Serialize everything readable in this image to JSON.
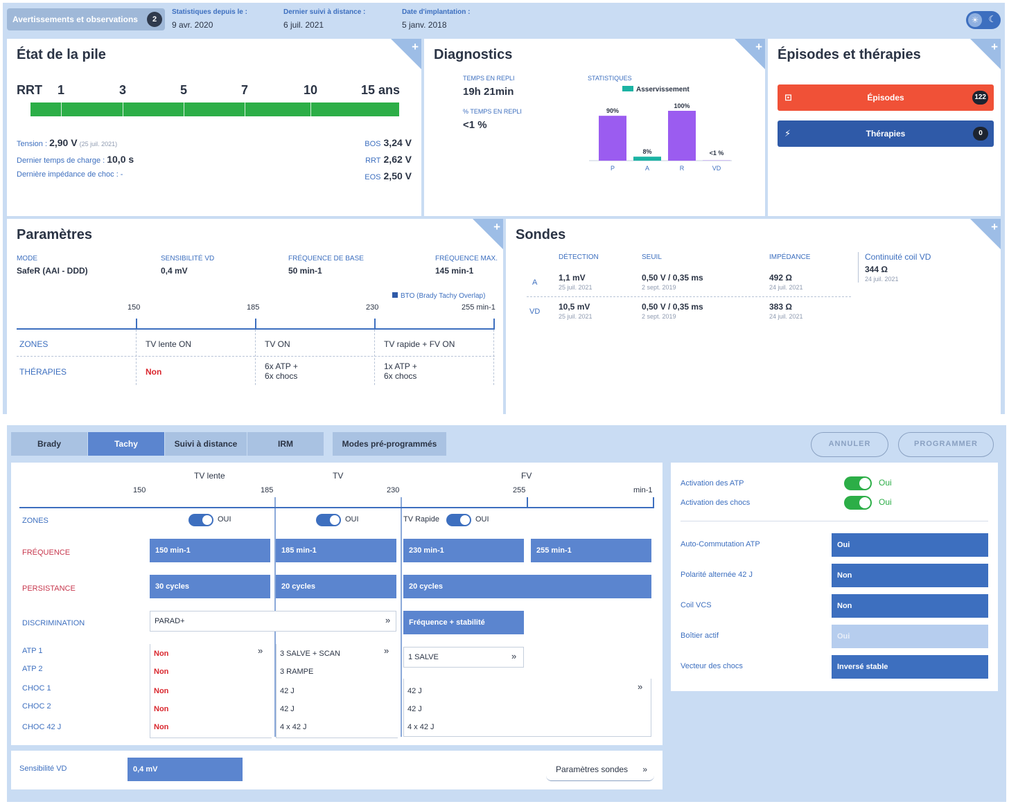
{
  "header": {
    "warnings_label": "Avertissements et observations",
    "warnings_count": "2",
    "stats_since_label": "Statistiques depuis le :",
    "stats_since_value": "9 avr. 2020",
    "last_remote_label": "Dernier suivi à distance :",
    "last_remote_value": "6 juil. 2021",
    "implant_label": "Date d'implantation :",
    "implant_value": "5 janv. 2018"
  },
  "battery": {
    "title": "État de la pile",
    "rrt_label": "RRT",
    "ticks": [
      "1",
      "3",
      "5",
      "7",
      "10",
      "15 ans"
    ],
    "tension_label": "Tension :",
    "tension_value": "2,90 V",
    "tension_date": "(25 juil. 2021)",
    "charge_label": "Dernier temps de charge :",
    "charge_value": "10,0 s",
    "impedance_label": "Dernière impédance de choc : -",
    "bos_label": "BOS",
    "bos_value": "3,24 V",
    "rrt_small_label": "RRT",
    "rrt_value": "2,62 V",
    "eos_label": "EOS",
    "eos_value": "2,50 V"
  },
  "diagnostics": {
    "title": "Diagnostics",
    "fallback_time_label": "TEMPS EN REPLI",
    "fallback_time_value": "19h 21min",
    "fallback_pct_label": "% TEMPS EN REPLI",
    "fallback_pct_value": "<1 %",
    "stats_label": "STATISTIQUES",
    "legend_label": "Asservissement"
  },
  "chart_data": {
    "type": "bar",
    "categories": [
      "P",
      "A",
      "R",
      "VD"
    ],
    "values": [
      90,
      8,
      100,
      0.5
    ],
    "value_labels": [
      "90%",
      "8%",
      "100%",
      "<1 %"
    ],
    "series": [
      {
        "name": "Asservissement",
        "values": [
          0,
          8,
          0,
          0
        ]
      }
    ],
    "ylim": [
      0,
      100
    ],
    "colors": {
      "bar": "#9b5cf0",
      "asservissement": "#1bb3a3"
    }
  },
  "episodes": {
    "title": "Épisodes et thérapies",
    "episodes_label": "Épisodes",
    "episodes_count": "122",
    "therapies_label": "Thérapies",
    "therapies_count": "0"
  },
  "params": {
    "title": "Paramètres",
    "mode_label": "MODE",
    "mode_value": "SafeR (AAI - DDD)",
    "sens_label": "SENSIBILITÉ VD",
    "sens_value": "0,4 mV",
    "base_label": "FRÉQUENCE DE BASE",
    "base_value": "50 min-1",
    "max_label": "FRÉQUENCE MAX.",
    "max_value": "145 min-1",
    "bto_label": "BTO (Brady Tachy Overlap)",
    "scale": [
      "150",
      "185",
      "230",
      "255 min-1"
    ],
    "zones_label": "ZONES",
    "therapies_label": "THÉRAPIES",
    "zones": [
      "TV lente ON",
      "TV ON",
      "TV rapide + FV ON"
    ],
    "therapies": [
      "Non",
      "6x ATP  +\n6x chocs",
      "1x ATP  +\n6x chocs"
    ]
  },
  "leads": {
    "title": "Sondes",
    "detection_label": "DÉTECTION",
    "threshold_label": "SEUIL",
    "impedance_label": "IMPÉDANCE",
    "coil_label": "Continuité coil VD",
    "coil_value": "344 Ω",
    "coil_date": "24 juil. 2021",
    "rows": [
      {
        "chamber": "A",
        "det": "1,1 mV",
        "det_date": "25 juil. 2021",
        "thr": "0,50 V / 0,35 ms",
        "thr_date": "2 sept. 2019",
        "imp": "492 Ω",
        "imp_date": "24 juil. 2021"
      },
      {
        "chamber": "VD",
        "det": "10,5 mV",
        "det_date": "25 juil. 2021",
        "thr": "0,50 V / 0,35 ms",
        "thr_date": "2 sept. 2019",
        "imp": "383 Ω",
        "imp_date": "24 juil. 2021"
      }
    ]
  },
  "programmer": {
    "tabs": [
      "Brady",
      "Tachy",
      "Suivi à distance",
      "IRM",
      "Modes pré-programmés"
    ],
    "cancel_label": "ANNULER",
    "program_label": "PROGRAMMER",
    "zone_heads": [
      "TV lente",
      "TV",
      "FV"
    ],
    "zone_scale": [
      "150",
      "185",
      "230",
      "255",
      "min-1"
    ],
    "row_zones": "ZONES",
    "row_freq": "FRÉQUENCE",
    "row_persist": "PERSISTANCE",
    "row_discrim": "DISCRIMINATION",
    "row_atp1": "ATP 1",
    "row_atp2": "ATP 2",
    "row_choc1": "CHOC 1",
    "row_choc2": "CHOC 2",
    "row_choc3": "CHOC 42 J",
    "oui": "OUI",
    "tv_rapide": "TV Rapide",
    "freq": [
      "150 min-1",
      "185 min-1",
      "230 min-1",
      "255 min-1"
    ],
    "persist": [
      "30 cycles",
      "20 cycles",
      "20 cycles"
    ],
    "discrim_left": "PARAD+",
    "discrim_right": "Fréquence + stabilité",
    "atp_list_z1": [
      "Non",
      "Non",
      "Non",
      "Non",
      "Non"
    ],
    "z2_list": [
      "3 SALVE + SCAN",
      "3 RAMPE",
      "42 J",
      "42 J",
      "4 x 42 J"
    ],
    "z3_atp": "1 SALVE",
    "z3_list": [
      "42 J",
      "42 J",
      "4 x 42 J"
    ],
    "sens_label": "Sensibilité VD",
    "sens_value": "0,4 mV",
    "probe_params": "Paramètres sondes",
    "side": {
      "atp_label": "Activation des ATP",
      "shock_label": "Activation des chocs",
      "oui": "Oui",
      "auto_label": "Auto-Commutation ATP",
      "auto_value": "Oui",
      "polarity_label": "Polarité alternée 42 J",
      "polarity_value": "Non",
      "coil_label": "Coil VCS",
      "coil_value": "Non",
      "box_label": "Boîtier actif",
      "box_value": "Oui",
      "vector_label": "Vecteur des chocs",
      "vector_value": "Inversé stable"
    }
  }
}
